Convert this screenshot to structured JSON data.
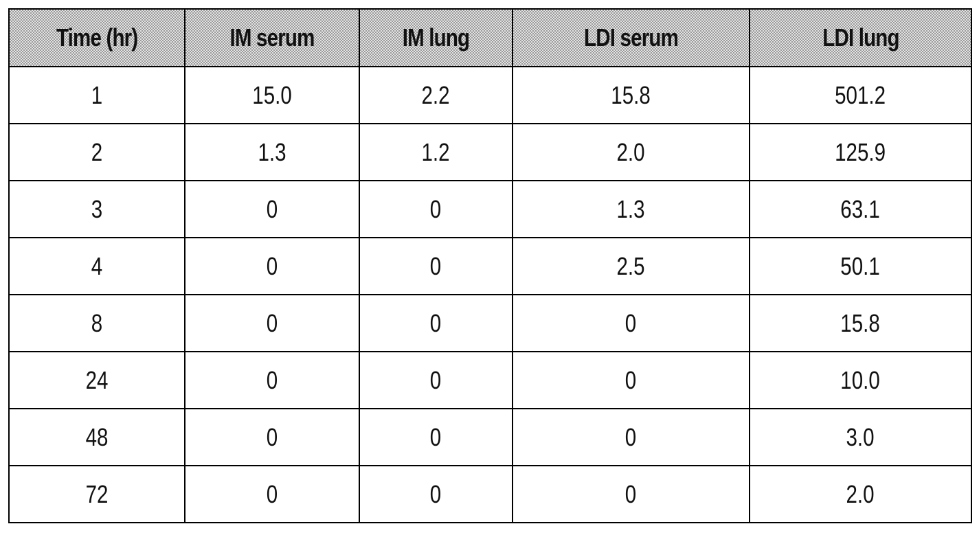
{
  "table": {
    "header": [
      "Time (hr)",
      "IM serum",
      "IM lung",
      "LDI serum",
      "LDI lung"
    ],
    "rows": [
      [
        "1",
        "15.0",
        "2.2",
        "15.8",
        "501.2"
      ],
      [
        "2",
        "1.3",
        "1.2",
        "2.0",
        "125.9"
      ],
      [
        "3",
        "0",
        "0",
        "1.3",
        "63.1"
      ],
      [
        "4",
        "0",
        "0",
        "2.5",
        "50.1"
      ],
      [
        "8",
        "0",
        "0",
        "0",
        "15.8"
      ],
      [
        "24",
        "0",
        "0",
        "0",
        "10.0"
      ],
      [
        "48",
        "0",
        "0",
        "0",
        "3.0"
      ],
      [
        "72",
        "0",
        "0",
        "0",
        "2.0"
      ]
    ]
  }
}
